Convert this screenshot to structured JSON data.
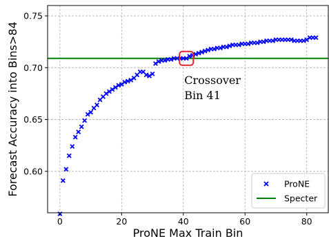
{
  "chart_data": {
    "type": "scatter",
    "title": "",
    "xlabel": "ProNE Max Train Bin",
    "ylabel": "Forecast Accuracy into Bins>84",
    "xlim": [
      -4,
      87
    ],
    "ylim": [
      0.56,
      0.76
    ],
    "xticks": [
      0,
      20,
      40,
      60,
      80
    ],
    "xtick_labels": [
      "0",
      "20",
      "40",
      "60",
      "80"
    ],
    "yticks": [
      0.6,
      0.65,
      0.7,
      0.75
    ],
    "ytick_labels": [
      "0.60",
      "0.65",
      "0.70",
      "0.75"
    ],
    "grid": true,
    "legend_position": "bottom-right",
    "series": [
      {
        "name": "ProNE",
        "marker": "x",
        "color": "#0000ff",
        "x": [
          0,
          1,
          2,
          3,
          4,
          5,
          6,
          7,
          8,
          9,
          10,
          11,
          12,
          13,
          14,
          15,
          16,
          17,
          18,
          19,
          20,
          21,
          22,
          23,
          24,
          25,
          26,
          27,
          28,
          29,
          30,
          31,
          32,
          33,
          34,
          35,
          36,
          37,
          38,
          39,
          40,
          41,
          42,
          43,
          44,
          45,
          46,
          47,
          48,
          49,
          50,
          51,
          52,
          53,
          54,
          55,
          56,
          57,
          58,
          59,
          60,
          61,
          62,
          63,
          64,
          65,
          66,
          67,
          68,
          69,
          70,
          71,
          72,
          73,
          74,
          75,
          76,
          77,
          78,
          79,
          80,
          81,
          82,
          83
        ],
        "y": [
          0.559,
          0.591,
          0.602,
          0.615,
          0.624,
          0.633,
          0.638,
          0.643,
          0.649,
          0.655,
          0.657,
          0.661,
          0.664,
          0.669,
          0.672,
          0.675,
          0.677,
          0.679,
          0.681,
          0.683,
          0.684,
          0.686,
          0.687,
          0.688,
          0.69,
          0.693,
          0.696,
          0.696,
          0.693,
          0.692,
          0.694,
          0.704,
          0.706,
          0.707,
          0.707,
          0.708,
          0.708,
          0.709,
          0.709,
          0.709,
          0.709,
          0.709,
          0.711,
          0.712,
          0.713,
          0.714,
          0.715,
          0.716,
          0.717,
          0.718,
          0.718,
          0.719,
          0.719,
          0.72,
          0.72,
          0.721,
          0.722,
          0.722,
          0.722,
          0.723,
          0.723,
          0.723,
          0.724,
          0.724,
          0.724,
          0.725,
          0.725,
          0.726,
          0.726,
          0.726,
          0.727,
          0.727,
          0.727,
          0.727,
          0.727,
          0.727,
          0.726,
          0.726,
          0.726,
          0.726,
          0.727,
          0.729,
          0.729,
          0.729
        ]
      },
      {
        "name": "Specter",
        "marker": "line",
        "color": "#008000",
        "y": 0.709
      }
    ],
    "annotation": {
      "lines": [
        "Crossover",
        "Bin 41"
      ],
      "target_x": 41,
      "target_y": 0.709,
      "box_color": "#e8262a"
    }
  }
}
